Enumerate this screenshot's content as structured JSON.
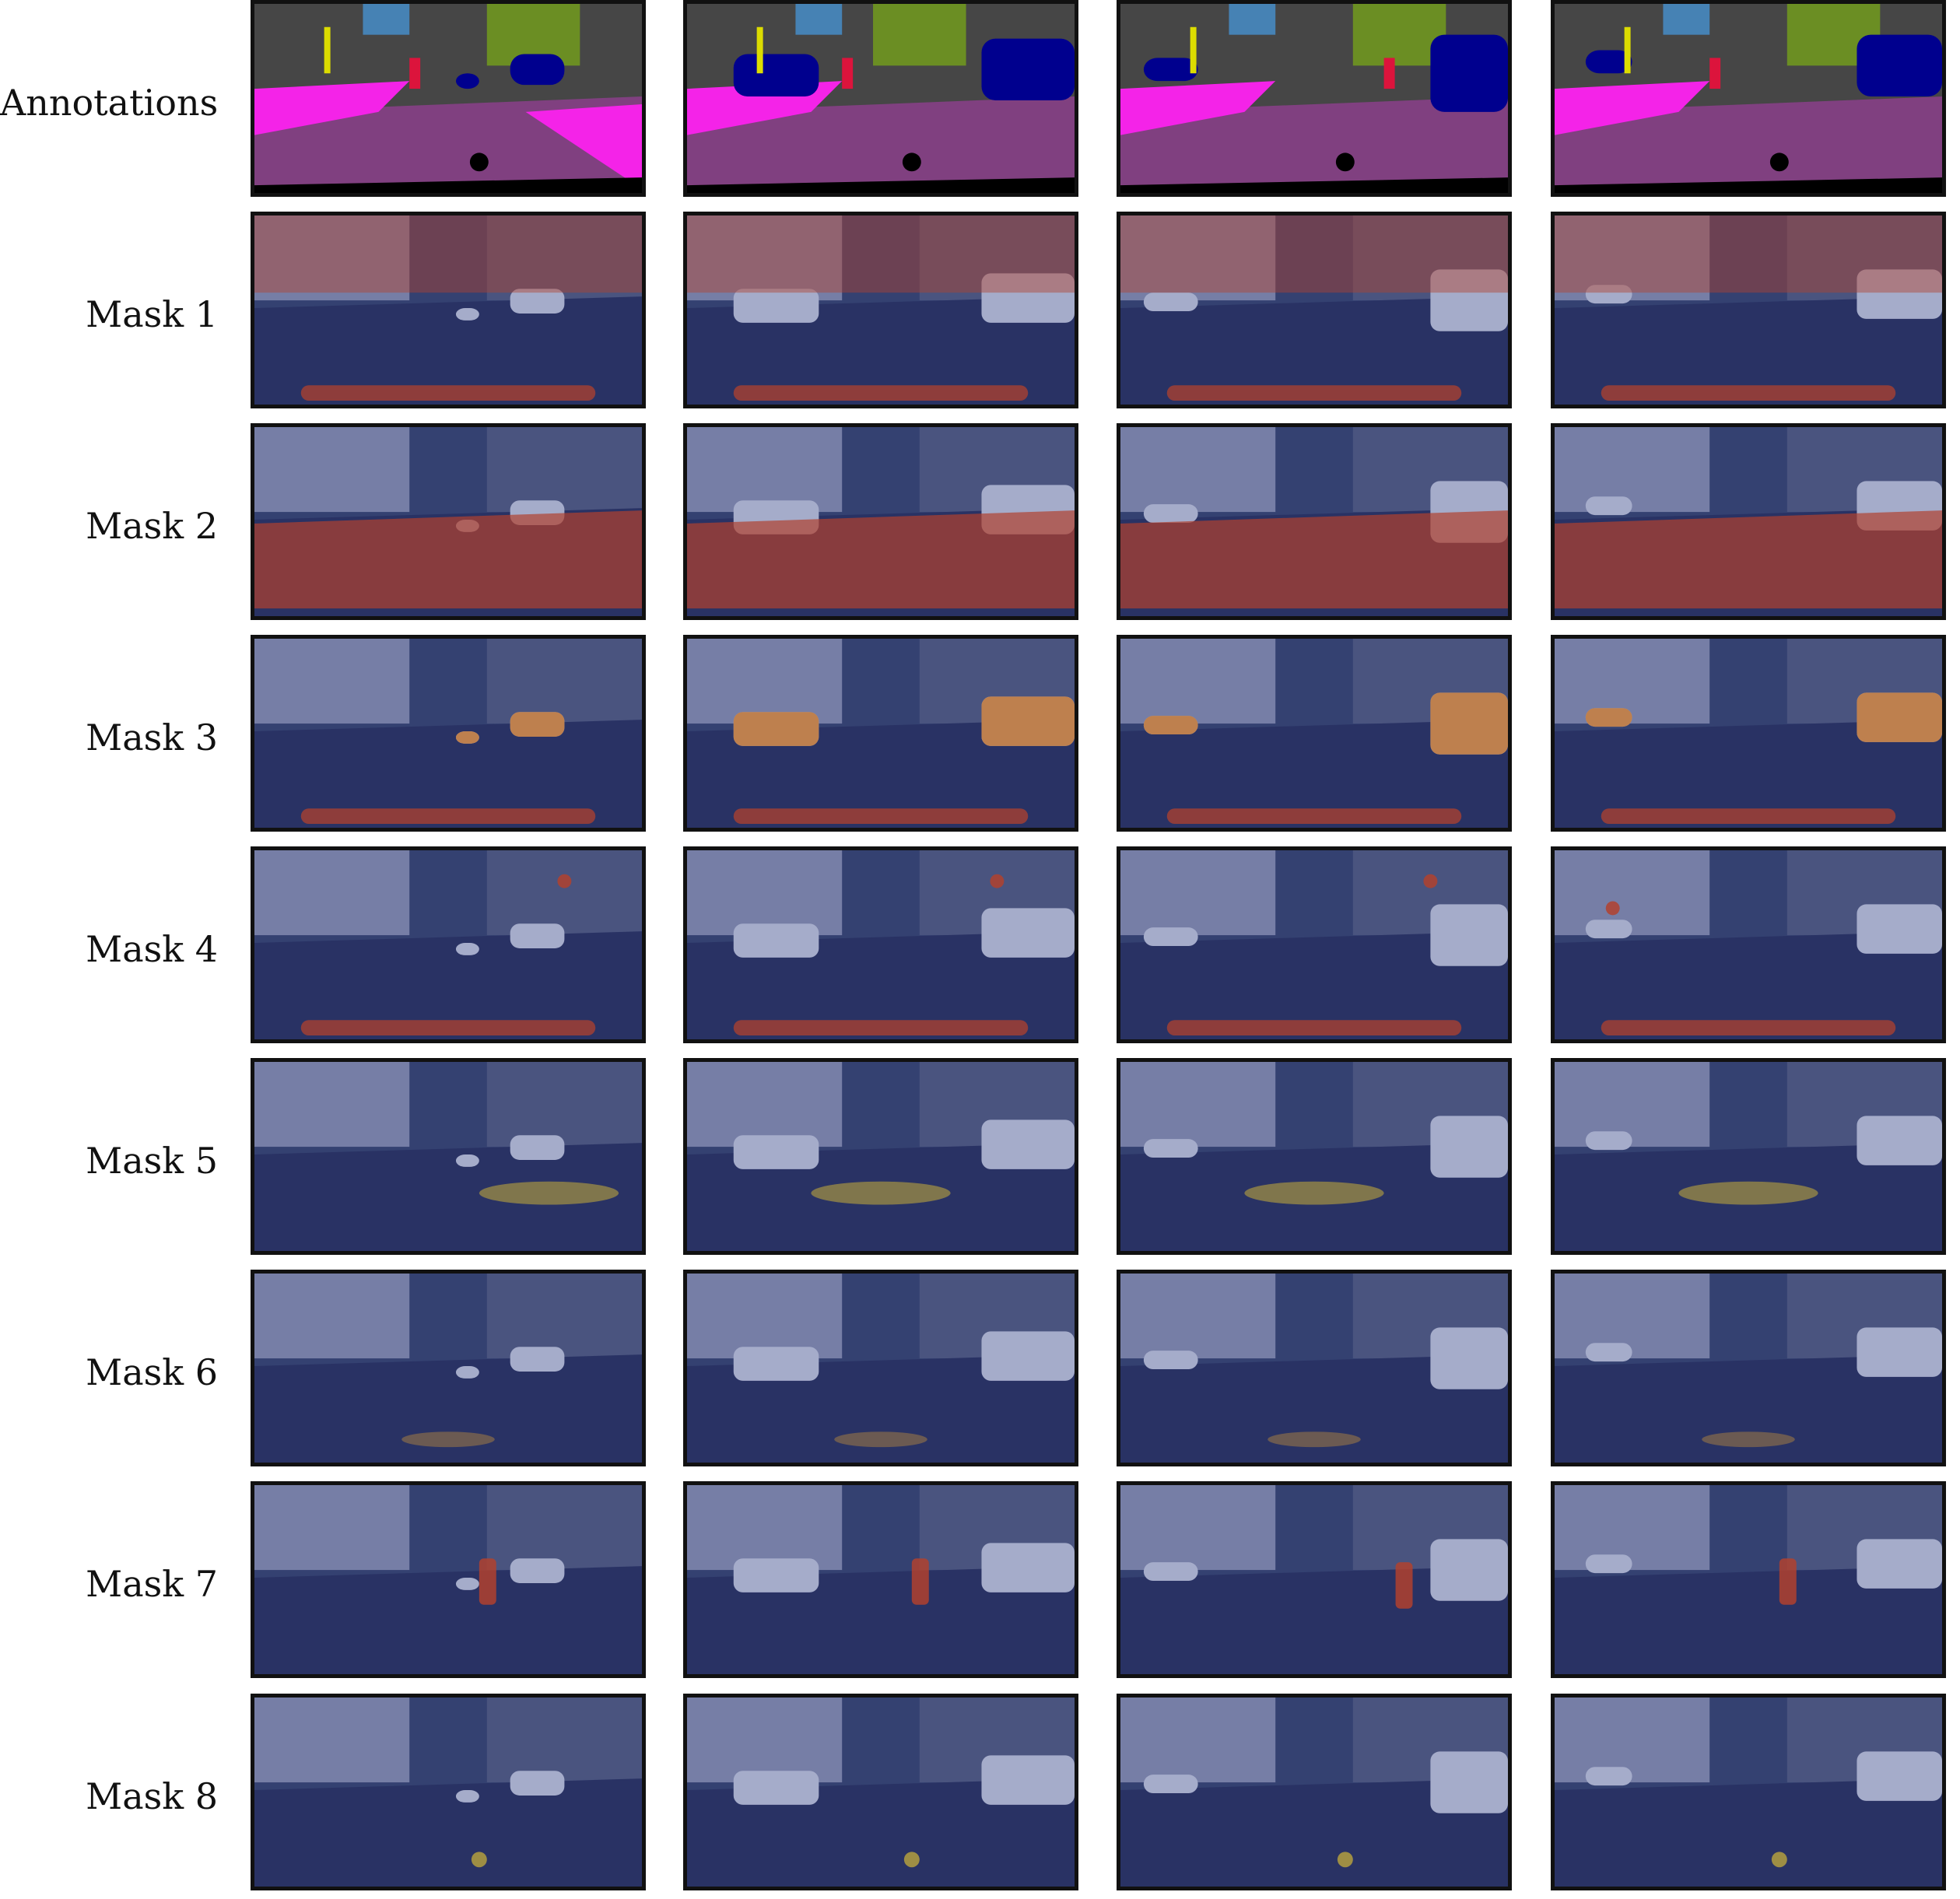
{
  "rows": [
    {
      "label": "Annotations",
      "kind": "annotation"
    },
    {
      "label": "Mask 1",
      "kind": "mask",
      "heat": [
        "sky",
        "bottom"
      ]
    },
    {
      "label": "Mask 2",
      "kind": "mask",
      "heat": [
        "road"
      ]
    },
    {
      "label": "Mask 3",
      "kind": "mask",
      "heat": [
        "cars",
        "bottom"
      ]
    },
    {
      "label": "Mask 4",
      "kind": "mask",
      "heat": [
        "signs",
        "bottom"
      ]
    },
    {
      "label": "Mask 5",
      "kind": "mask",
      "heat": [
        "sidewalk"
      ]
    },
    {
      "label": "Mask 6",
      "kind": "mask",
      "heat": [
        "faint"
      ]
    },
    {
      "label": "Mask 7",
      "kind": "mask",
      "heat": [
        "person"
      ]
    },
    {
      "label": "Mask 8",
      "kind": "mask",
      "heat": [
        "hoodspot"
      ]
    }
  ],
  "colors": {
    "road": "#804080",
    "sidewalk": "#f423e8",
    "building": "#464646",
    "vegetation": "#6b8e23",
    "sky": "#4682b4",
    "car": "#00008e",
    "person": "#dc143c",
    "traffic_sign": "#dcdc00",
    "ego_vehicle": "#000000",
    "heat_low": "#1a2a7a",
    "heat_high": "#d2461e"
  }
}
